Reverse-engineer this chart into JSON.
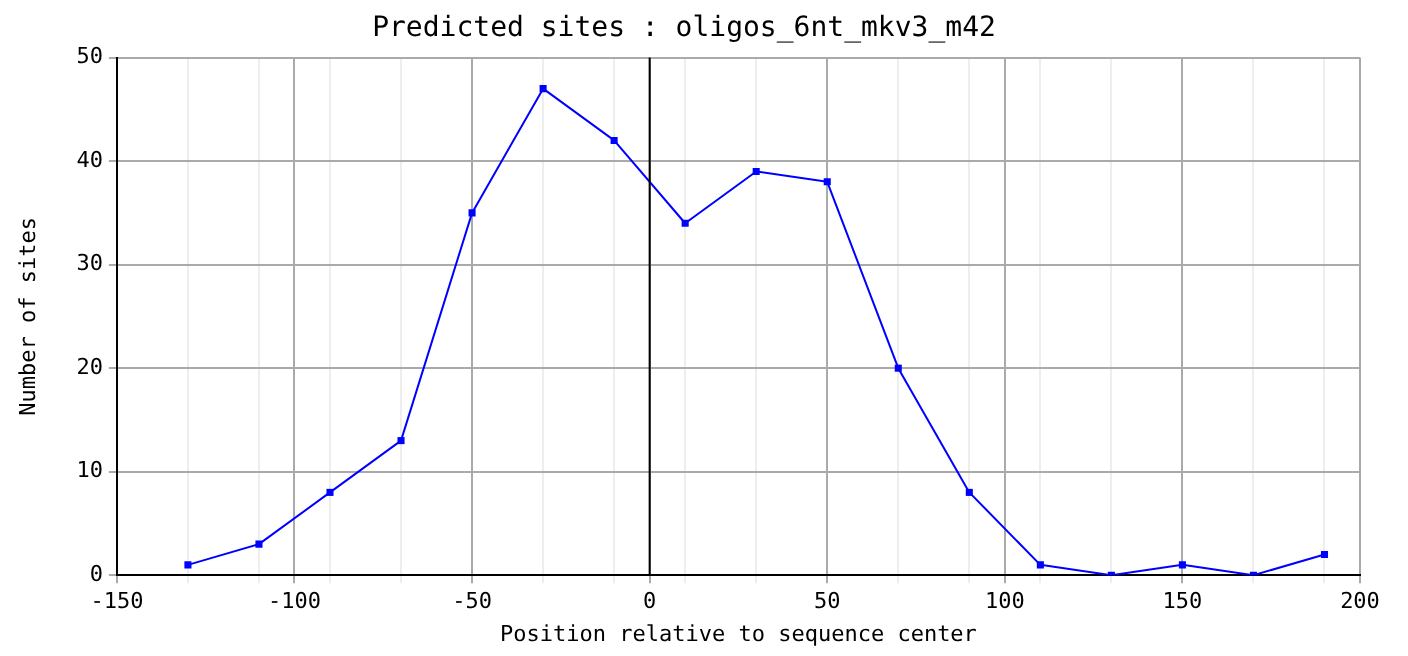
{
  "chart_data": {
    "type": "line",
    "title": "Predicted sites : oligos_6nt_mkv3_m42",
    "xlabel": "Position relative to sequence center",
    "ylabel": "Number of sites",
    "x": [
      -130,
      -110,
      -90,
      -70,
      -50,
      -30,
      -10,
      10,
      30,
      50,
      70,
      90,
      110,
      130,
      150,
      170,
      190
    ],
    "series": [
      {
        "color": "#0000ff",
        "values": [
          1,
          3,
          8,
          13,
          35,
          47,
          42,
          34,
          39,
          38,
          20,
          8,
          1,
          0,
          1,
          0,
          2
        ]
      }
    ],
    "xlim": [
      -150,
      200
    ],
    "xticks": [
      -150,
      {
        "value": -130,
        "label": null
      },
      {
        "value": -110,
        "label": null
      },
      -100,
      {
        "value": -90,
        "label": null
      },
      {
        "value": -70,
        "label": null
      },
      -50,
      {
        "value": -30,
        "label": null
      },
      {
        "value": -10,
        "label": null
      },
      0,
      {
        "value": 10,
        "label": null
      },
      {
        "value": 30,
        "label": null
      },
      50,
      {
        "value": 70,
        "label": null
      },
      {
        "value": 90,
        "label": null
      },
      100,
      {
        "value": 110,
        "label": null
      },
      {
        "value": 130,
        "label": null
      },
      150,
      {
        "value": 170,
        "label": null
      },
      {
        "value": 190,
        "label": null
      },
      200
    ],
    "ylim": [
      0,
      50
    ],
    "yticks": [
      0,
      10,
      20,
      30,
      40,
      50
    ],
    "ref_lines": [
      {
        "axis": "x",
        "value": 0,
        "color": "#000000"
      }
    ],
    "grid": true,
    "legend": false,
    "marker": "square",
    "line_style": "solid"
  }
}
